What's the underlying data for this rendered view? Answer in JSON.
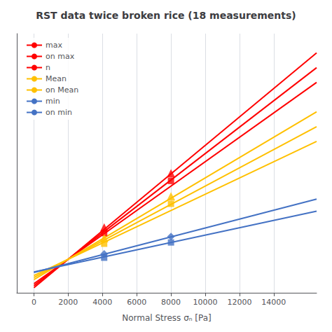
{
  "chart_data": {
    "type": "line",
    "title": "RST data twice broken rice (18 measurements)",
    "xlabel": "Normal Stress σₙ [Pa]",
    "xlim": [
      -1000,
      16500
    ],
    "xticks": [
      0,
      2000,
      4000,
      6000,
      8000,
      10000,
      12000,
      14000
    ],
    "ylim": [
      -700,
      9500
    ],
    "yticks": [],
    "tick_labels": "x",
    "grid": true,
    "legend": "upper left",
    "series": [
      {
        "name": "max",
        "type": "line",
        "marker": "none",
        "color": "#FF0000",
        "x": [
          0,
          16500
        ],
        "values": [
          -500,
          8740
        ]
      },
      {
        "name": "on max",
        "type": "line",
        "marker": "none",
        "color": "#FF0000",
        "x": [
          0,
          16500
        ],
        "values": [
          -420,
          8160
        ]
      },
      {
        "name": "n",
        "type": "line",
        "marker": "none",
        "color": "#FF0000",
        "x": [
          0,
          16500
        ],
        "values": [
          -340,
          7580
        ]
      },
      {
        "name": "Mean",
        "type": "line",
        "marker": "none",
        "color": "#FFC000",
        "x": [
          0,
          16500
        ],
        "values": [
          -180,
          6420
        ]
      },
      {
        "name": "on Mean",
        "type": "line",
        "marker": "none",
        "color": "#FFC000",
        "x": [
          0,
          16500
        ],
        "values": [
          -100,
          5840
        ]
      },
      {
        "type": "line",
        "marker": "none",
        "color": "#FFC000",
        "x": [
          0,
          16500
        ],
        "values": [
          -20,
          5260
        ]
      },
      {
        "name": "min",
        "type": "line",
        "marker": "none",
        "color": "#4472C4",
        "x": [
          0,
          16500
        ],
        "values": [
          100,
          2987.5
        ]
      },
      {
        "name": "on min",
        "type": "line",
        "marker": "none",
        "color": "#4472C4",
        "x": [
          0,
          16500
        ],
        "values": [
          120,
          2512.5
        ]
      },
      {
        "name": "max",
        "type": "scatter",
        "marker": "triangle",
        "color": "#FF0000",
        "x": [
          4100,
          8000
        ],
        "values": [
          1870,
          4000
        ]
      },
      {
        "name": "on max",
        "type": "scatter",
        "marker": "rect",
        "color": "#FF0000",
        "x": [
          4100,
          8000
        ],
        "values": [
          1650,
          3700
        ]
      },
      {
        "name": "Mean",
        "type": "scatter",
        "marker": "triangle",
        "color": "#FFC000",
        "x": [
          4100,
          8000
        ],
        "values": [
          1450,
          3100
        ]
      },
      {
        "name": "on Mean",
        "type": "scatter",
        "marker": "rect",
        "color": "#FFC000",
        "x": [
          4100,
          8000
        ],
        "values": [
          1230,
          2800
        ]
      },
      {
        "name": "min",
        "type": "scatter",
        "marker": "diamond",
        "color": "#4472C4",
        "x": [
          4100,
          8000
        ],
        "values": [
          830,
          1510
        ]
      },
      {
        "name": "on min",
        "type": "scatter",
        "marker": "rect",
        "color": "#4472C4",
        "x": [
          4100,
          8000
        ],
        "values": [
          680,
          1280
        ]
      }
    ]
  }
}
